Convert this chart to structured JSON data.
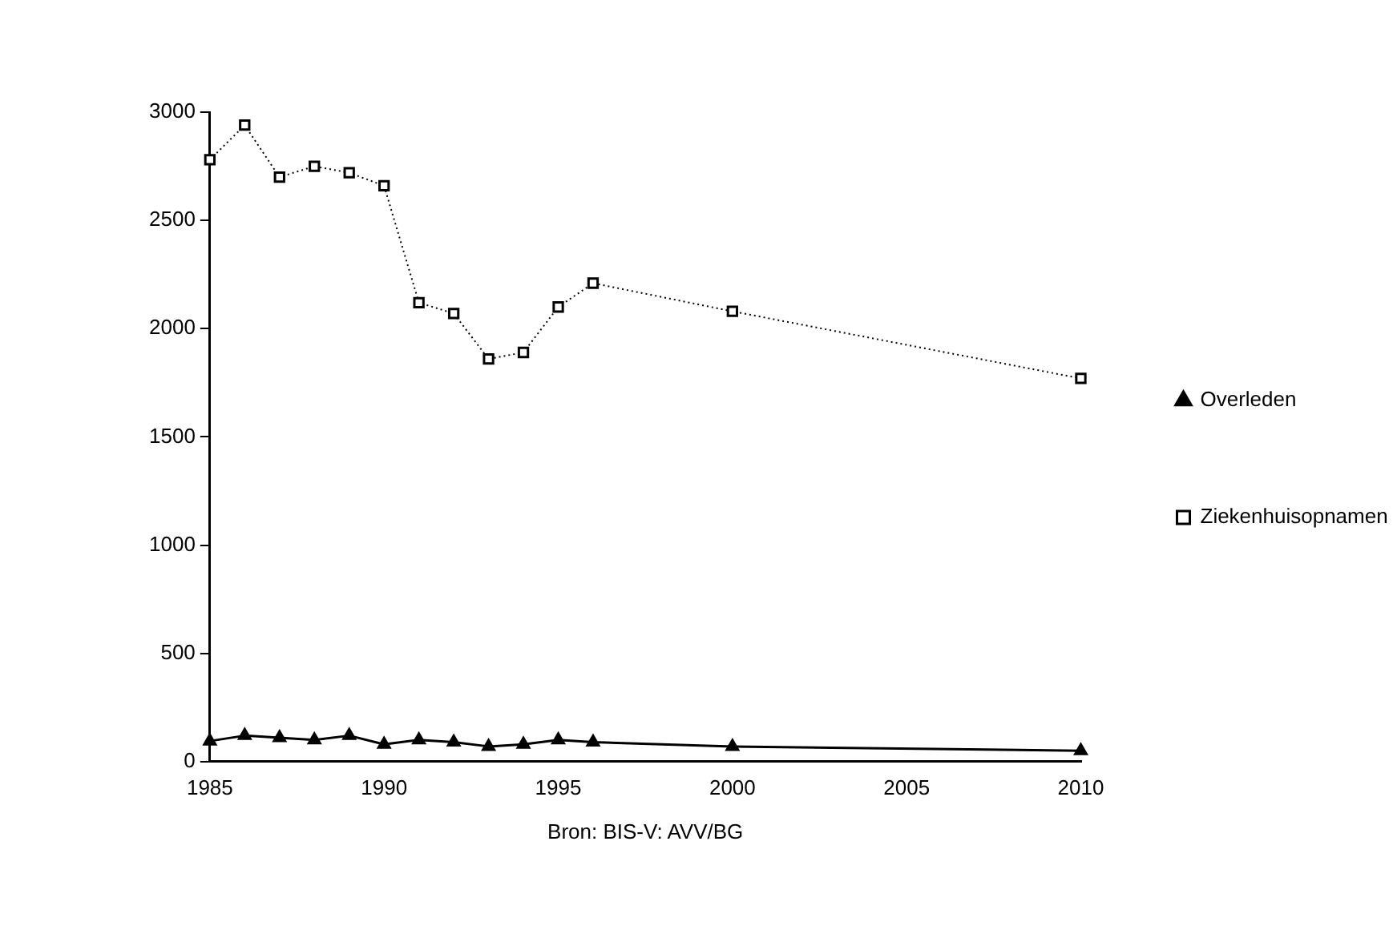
{
  "chart_data": {
    "type": "line",
    "x": [
      1985,
      1986,
      1987,
      1988,
      1989,
      1990,
      1991,
      1992,
      1993,
      1994,
      1995,
      1996,
      2000,
      2010
    ],
    "series": [
      {
        "name": "Overleden",
        "color": "#000000",
        "marker": "triangle",
        "line_style": "solid",
        "values": [
          95,
          120,
          110,
          100,
          120,
          80,
          100,
          90,
          70,
          80,
          100,
          90,
          70,
          50
        ]
      },
      {
        "name": "Ziekenhuisopnamen",
        "color": "#000000",
        "marker": "square",
        "line_style": "dotted",
        "values": [
          2780,
          2940,
          2700,
          2750,
          2720,
          2660,
          2120,
          2070,
          1860,
          1890,
          2100,
          2210,
          2080,
          1770
        ]
      }
    ],
    "xlim": [
      1985,
      2010
    ],
    "xticks": [
      1985,
      1990,
      1995,
      2000,
      2005,
      2010
    ],
    "ylim": [
      0,
      3000
    ],
    "yticks": [
      0,
      500,
      1000,
      1500,
      2000,
      2500,
      3000
    ],
    "grid": false,
    "legend": "right",
    "annotations": [
      "Bron: BIS-V: AVV/BG"
    ]
  }
}
